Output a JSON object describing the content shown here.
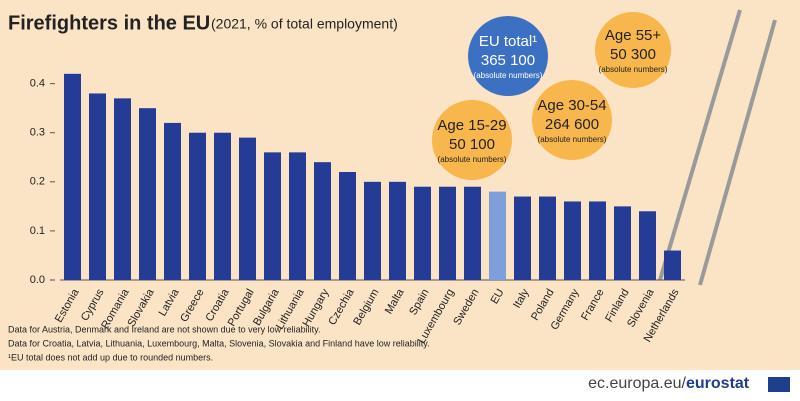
{
  "chart_data": {
    "type": "bar",
    "title": "Firefighters in the EU",
    "subtitle": "(2021, % of total employment)",
    "categories": [
      "Estonia",
      "Cyprus",
      "Romania",
      "Slovakia",
      "Latvia",
      "Greece",
      "Croatia",
      "Portugal",
      "Bulgaria",
      "Lithuania",
      "Hungary",
      "Czechia",
      "Belgium",
      "Malta",
      "Spain",
      "Luxembourg",
      "Sweden",
      "EU",
      "Italy",
      "Poland",
      "Germany",
      "France",
      "Finland",
      "Slovenia",
      "Netherlands"
    ],
    "values": [
      0.42,
      0.38,
      0.37,
      0.35,
      0.32,
      0.3,
      0.3,
      0.29,
      0.26,
      0.26,
      0.24,
      0.22,
      0.2,
      0.2,
      0.19,
      0.19,
      0.19,
      0.18,
      0.17,
      0.17,
      0.16,
      0.16,
      0.15,
      0.14,
      0.06
    ],
    "colors": [
      "#243c96",
      "#243c96",
      "#243c96",
      "#243c96",
      "#243c96",
      "#243c96",
      "#243c96",
      "#243c96",
      "#243c96",
      "#243c96",
      "#243c96",
      "#243c96",
      "#243c96",
      "#243c96",
      "#243c96",
      "#243c96",
      "#243c96",
      "#7f9fdc",
      "#243c96",
      "#243c96",
      "#243c96",
      "#243c96",
      "#243c96",
      "#243c96",
      "#243c96"
    ],
    "ylim": [
      0,
      0.44
    ],
    "yticks": [
      {
        "value": 0,
        "label": "0.0"
      },
      0.1,
      0.2,
      0.3,
      0.4
    ],
    "annotations": [
      {
        "lines": [
          "EU total¹",
          "365 100",
          "(absolute numbers)"
        ],
        "color": "#3c70c2"
      },
      {
        "lines": [
          "Age 15-29",
          "50 100",
          "(absolute numbers)"
        ],
        "color": "#f8b74c"
      },
      {
        "lines": [
          "Age 30-54",
          "264 600",
          "(absolute numbers)"
        ],
        "color": "#f8b74c"
      },
      {
        "lines": [
          "Age 55+",
          "50 300",
          "(absolute numbers)"
        ],
        "color": "#f8b74c"
      }
    ],
    "notes": [
      "Data for Austria, Denmark and Ireland are not shown due to very low reliability.",
      "Data for Croatia, Latvia, Lithuania, Luxembourg, Malta, Slovenia, Slovakia and Finland have low reliability.",
      "¹EU total does not add up due to rounded numbers."
    ],
    "source": [
      "ec.europa.eu/",
      "eurostat"
    ]
  }
}
